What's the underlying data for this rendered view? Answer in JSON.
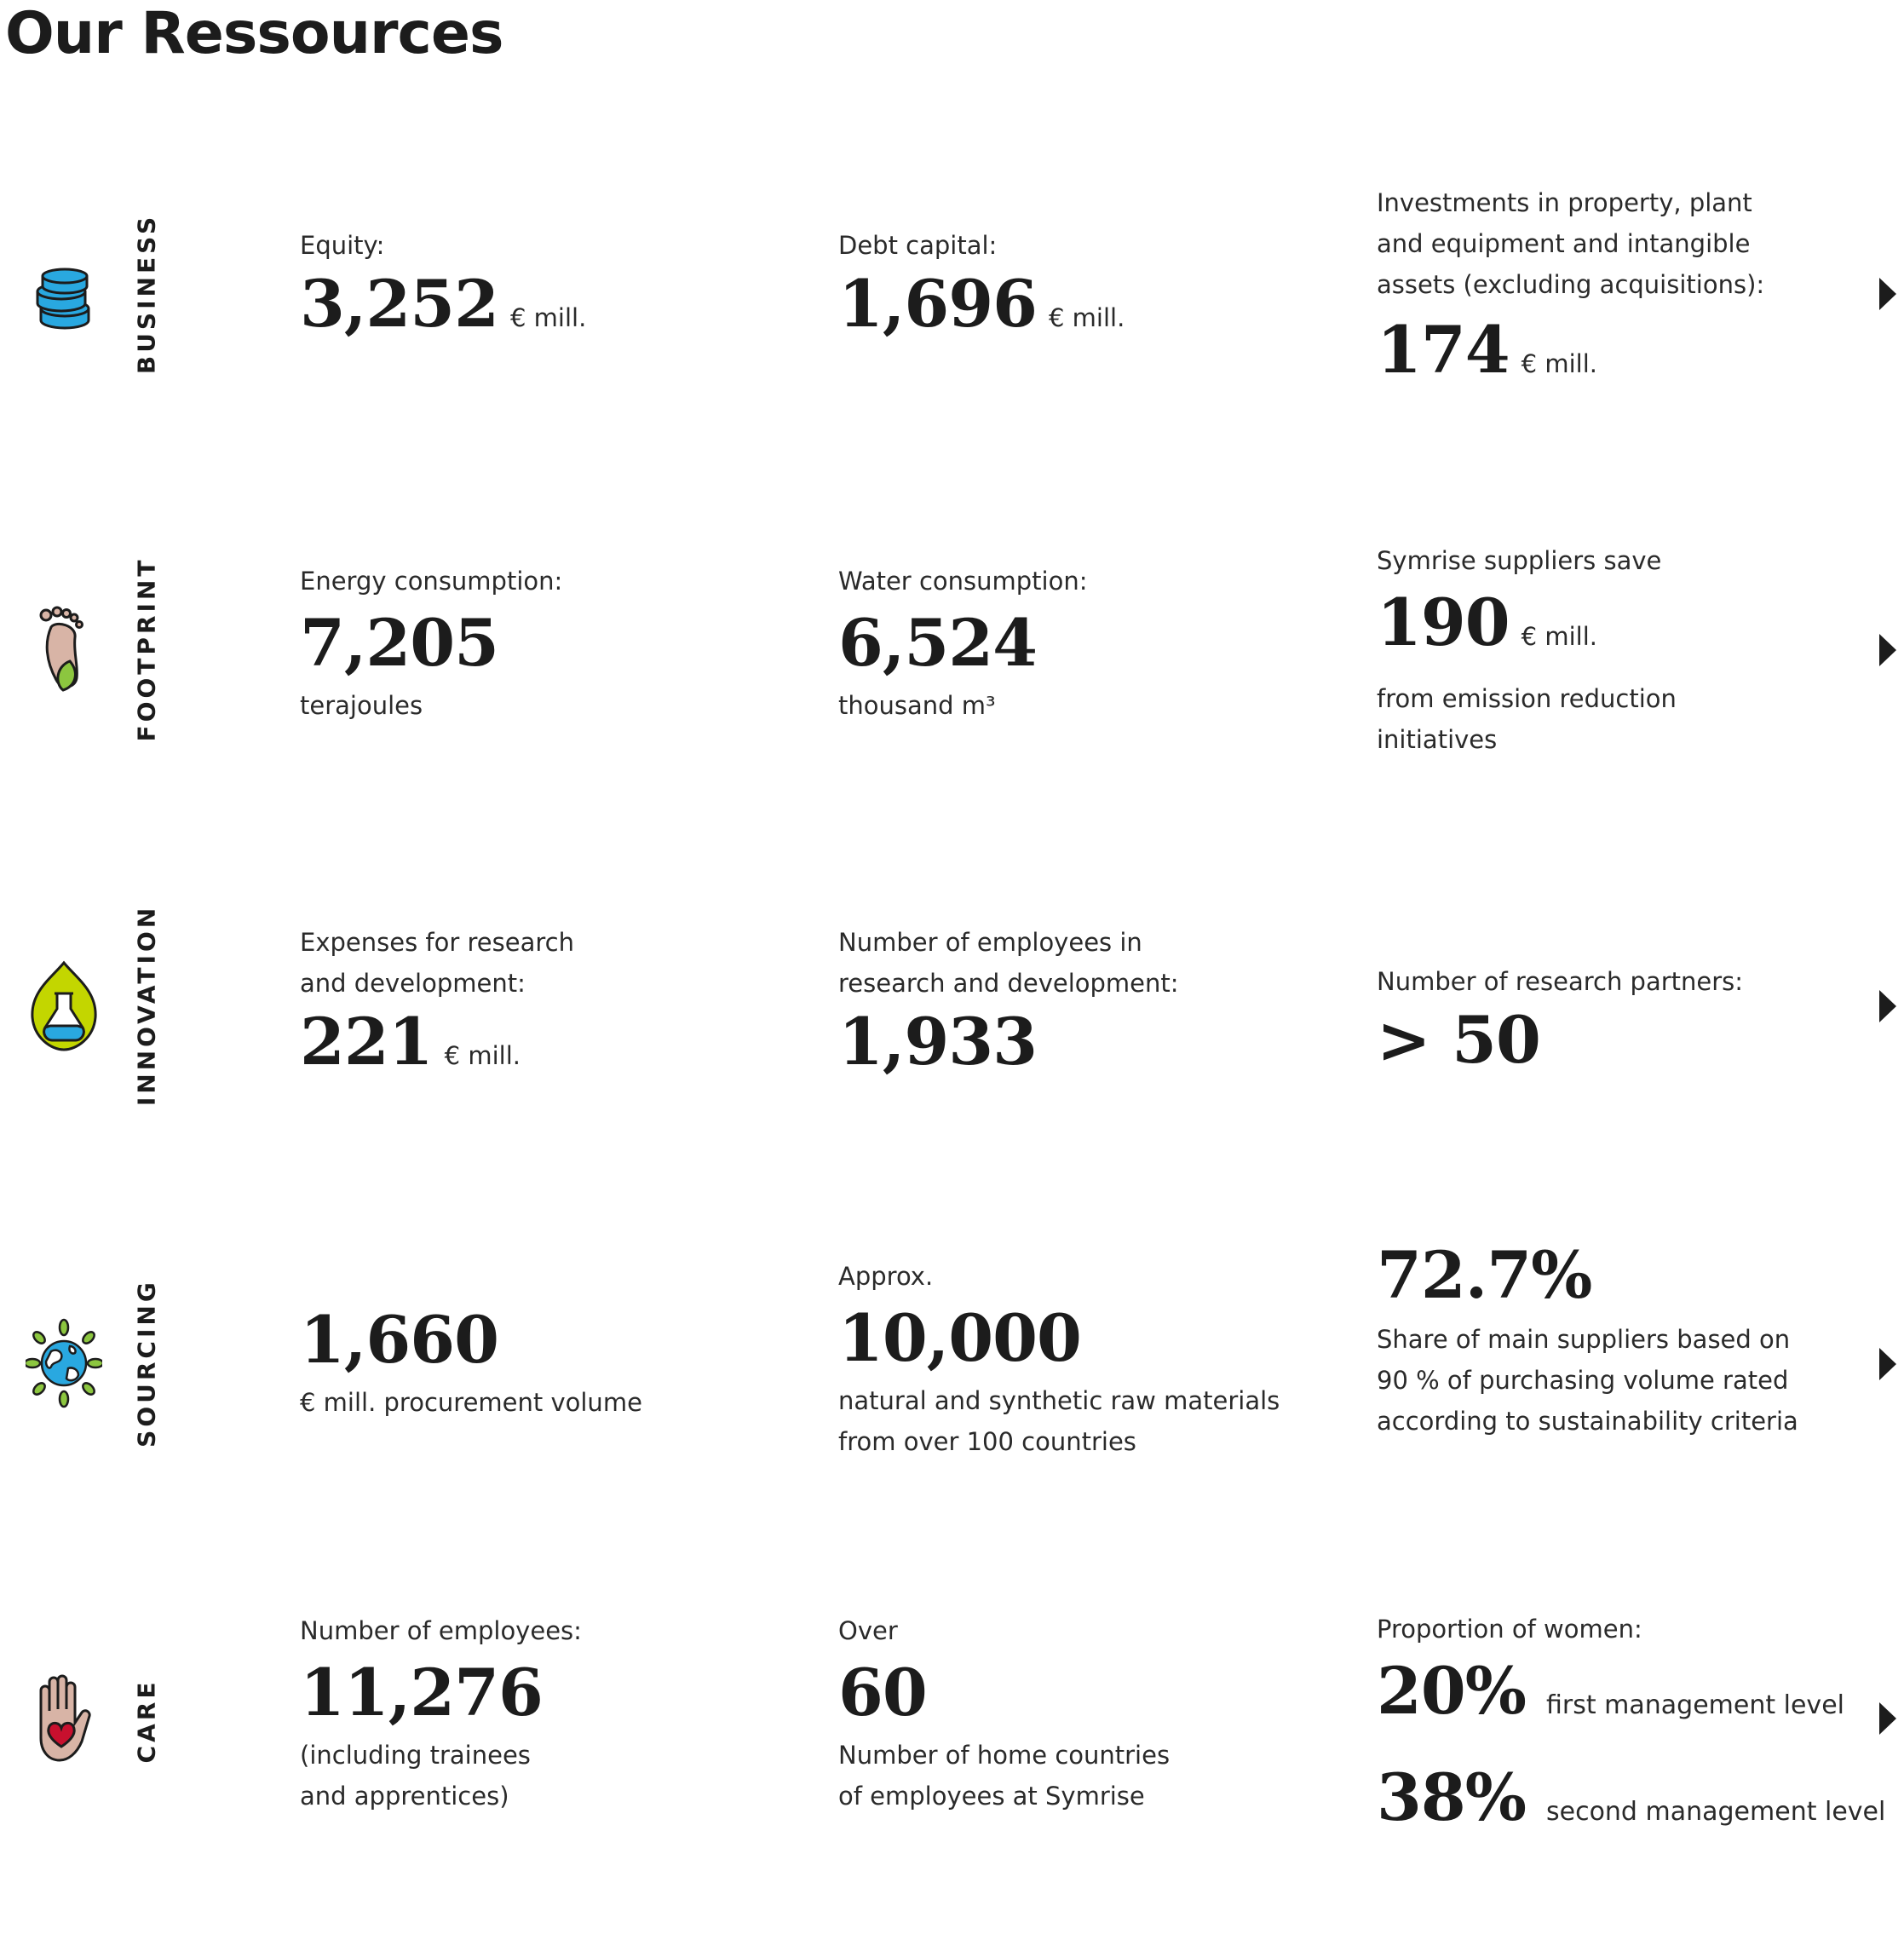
{
  "page": {
    "title": "Our Ressources"
  },
  "colors": {
    "text": "#1c1c1c",
    "blue": "#29a8e0",
    "green": "#8cc63f",
    "lime": "#c3d600",
    "skin": "#d8b4a6",
    "red": "#c8102e"
  },
  "sections": [
    {
      "label": "BUSINESS",
      "icon": "coin-stack-icon",
      "cells": [
        {
          "label": "Equity:",
          "value": "3,252",
          "unit": "€ mill."
        },
        {
          "label": "Debt capital:",
          "value": "1,696",
          "unit": "€ mill."
        },
        {
          "label_lines": [
            "Investments in property, plant",
            "and equipment and intangible",
            "assets (excluding acquisitions):"
          ],
          "value": "174",
          "unit": "€ mill."
        }
      ]
    },
    {
      "label": "FOOTPRINT",
      "icon": "footprint-leaf-icon",
      "cells": [
        {
          "label": "Energy consumption:",
          "value": "7,205",
          "sub": "terajoules"
        },
        {
          "label": "Water consumption:",
          "value": "6,524",
          "sub": "thousand m³"
        },
        {
          "label": "Symrise suppliers save",
          "value": "190",
          "unit": "€ mill.",
          "sub_lines": [
            "from emission reduction",
            "initiatives"
          ]
        }
      ]
    },
    {
      "label": "INNOVATION",
      "icon": "flask-leaf-icon",
      "cells": [
        {
          "label_lines": [
            "Expenses for research",
            "and development:"
          ],
          "value": "221",
          "unit": "€ mill."
        },
        {
          "label_lines": [
            "Number of employees in",
            "research and development:"
          ],
          "value": "1,933"
        },
        {
          "label": "Number of research partners:",
          "value": "> 50"
        }
      ]
    },
    {
      "label": "SOURCING",
      "icon": "globe-leaves-icon",
      "cells": [
        {
          "value": "1,660",
          "sub": "€ mill. procurement volume"
        },
        {
          "label": "Approx.",
          "value": "10,000",
          "sub_lines": [
            "natural and synthetic raw materials",
            "from over 100 countries"
          ]
        },
        {
          "value": "72.7%",
          "sub_lines": [
            "Share of main suppliers based on",
            "90 % of purchasing volume rated",
            "according to sustainability criteria"
          ]
        }
      ]
    },
    {
      "label": "CARE",
      "icon": "hand-heart-icon",
      "cells": [
        {
          "label": "Number of employees:",
          "value": "11,276",
          "sub_lines": [
            "(including trainees",
            "and apprentices)"
          ]
        },
        {
          "label": "Over",
          "value": "60",
          "sub_lines": [
            "Number of home countries",
            "of employees at Symrise"
          ]
        },
        {
          "label": "Proportion of women:",
          "rows": [
            {
              "value": "20%",
              "text": "first management level"
            },
            {
              "value": "38%",
              "text": "second management level"
            }
          ]
        }
      ]
    }
  ]
}
